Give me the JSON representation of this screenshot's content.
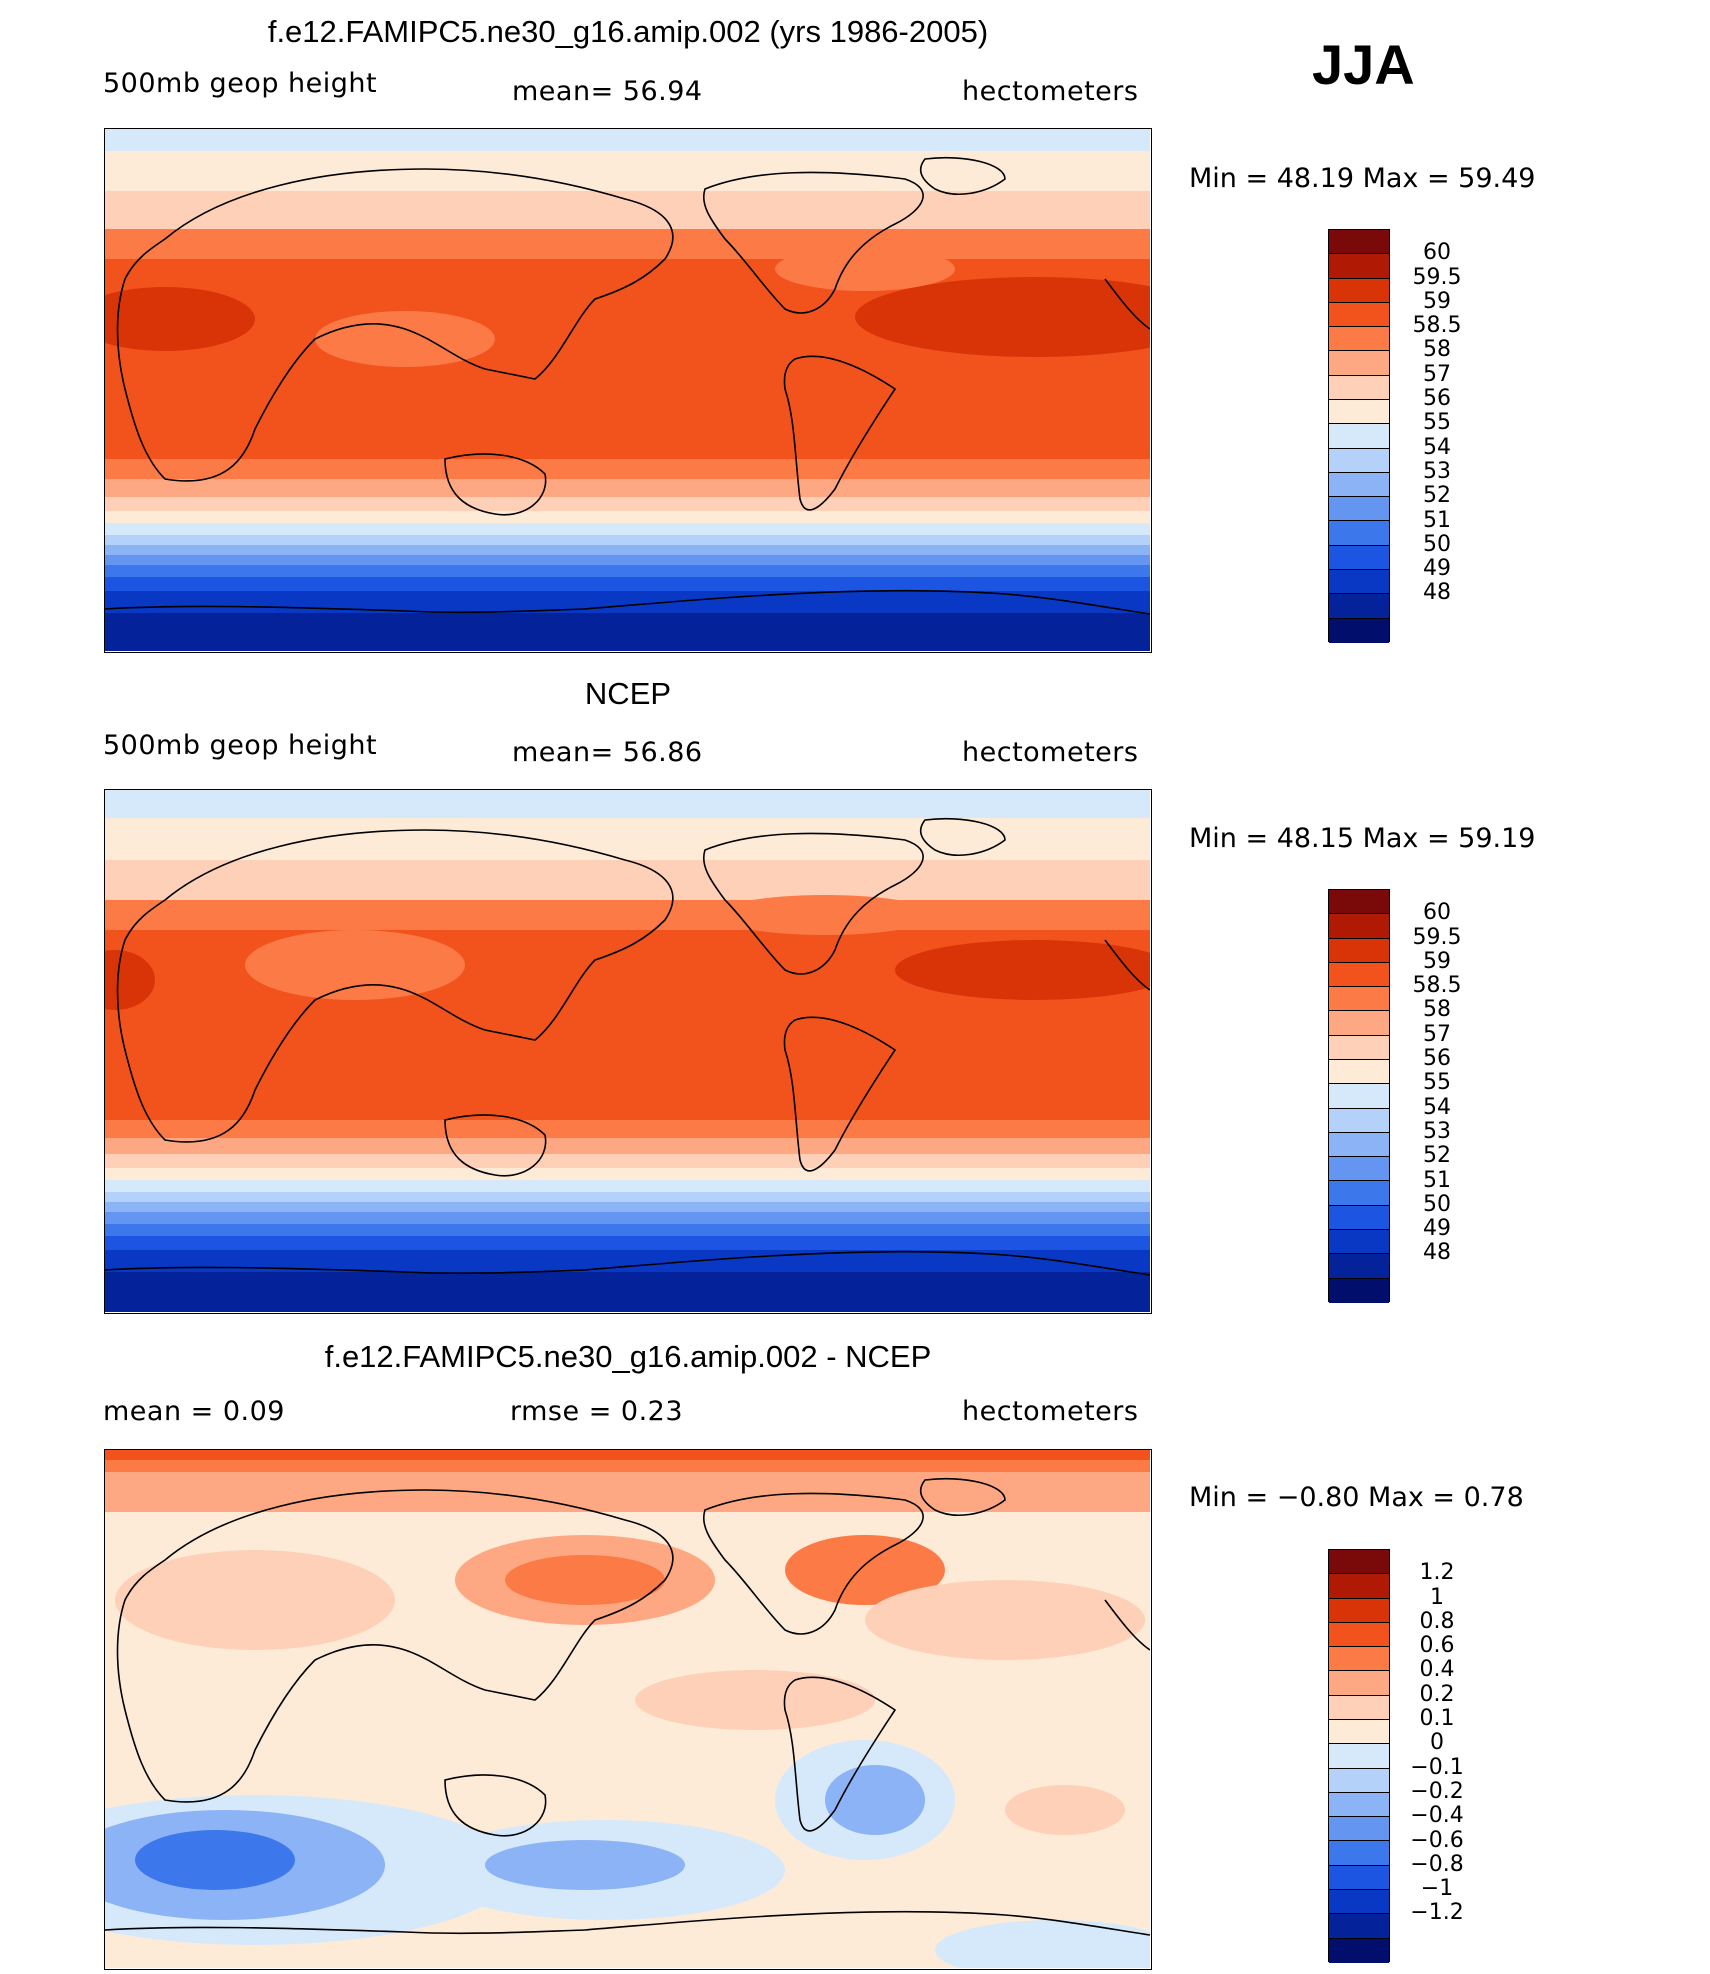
{
  "season": "JJA",
  "panels": [
    {
      "title": "f.e12.FAMIPC5.ne30_g16.amip.002 (yrs 1986-2005)",
      "left_label": "500mb  geop  height",
      "center_label": "mean=   56.94",
      "right_label": "hectometers",
      "min_max": "Min  =    48.19  Max  =    59.49",
      "colorbar": {
        "colors": [
          "#7a0a0a",
          "#b01a05",
          "#d93408",
          "#f2521c",
          "#fb7a46",
          "#fda882",
          "#fdd0b7",
          "#fdebd7",
          "#d6e9fb",
          "#b3d1f9",
          "#8cb3f5",
          "#6496f1",
          "#3c78eb",
          "#1b55e1",
          "#0838c4",
          "#04239a",
          "#010e6c"
        ],
        "ticks": [
          "60",
          "59.5",
          "59",
          "58.5",
          "58",
          "57",
          "56",
          "55",
          "54",
          "53",
          "52",
          "51",
          "50",
          "49",
          "48"
        ]
      }
    },
    {
      "title": "NCEP",
      "left_label": "500mb  geop  height",
      "center_label": "mean=   56.86",
      "right_label": "hectometers",
      "min_max": "Min  =    48.15  Max  =    59.19",
      "colorbar": {
        "colors": [
          "#7a0a0a",
          "#b01a05",
          "#d93408",
          "#f2521c",
          "#fb7a46",
          "#fda882",
          "#fdd0b7",
          "#fdebd7",
          "#d6e9fb",
          "#b3d1f9",
          "#8cb3f5",
          "#6496f1",
          "#3c78eb",
          "#1b55e1",
          "#0838c4",
          "#04239a",
          "#010e6c"
        ],
        "ticks": [
          "60",
          "59.5",
          "59",
          "58.5",
          "58",
          "57",
          "56",
          "55",
          "54",
          "53",
          "52",
          "51",
          "50",
          "49",
          "48"
        ]
      }
    },
    {
      "title": "f.e12.FAMIPC5.ne30_g16.amip.002 - NCEP",
      "left_label": "mean  =      0.09",
      "center_label": "rmse  =      0.23",
      "right_label": "hectometers",
      "min_max": "Min  =    −0.80  Max  =      0.78",
      "colorbar": {
        "colors": [
          "#7a0a0a",
          "#b01a05",
          "#d93408",
          "#f2521c",
          "#fb7a46",
          "#fda882",
          "#fdd0b7",
          "#fdebd7",
          "#d6e9fb",
          "#b3d1f9",
          "#8cb3f5",
          "#6496f1",
          "#3c78eb",
          "#1b55e1",
          "#0838c4",
          "#04239a",
          "#010e6c"
        ],
        "ticks": [
          "1.2",
          "1",
          "0.8",
          "0.6",
          "0.4",
          "0.2",
          "0.1",
          "0",
          "−0.1",
          "−0.2",
          "−0.4",
          "−0.6",
          "−0.8",
          "−1",
          "−1.2"
        ]
      }
    }
  ]
}
